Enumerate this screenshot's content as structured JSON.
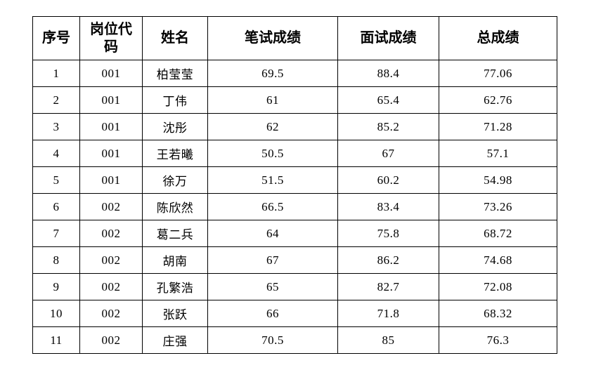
{
  "table": {
    "headers": [
      {
        "key": "seq",
        "label": "序号"
      },
      {
        "key": "code",
        "label": "岗位代码"
      },
      {
        "key": "name",
        "label": "姓名"
      },
      {
        "key": "written",
        "label": "笔试成绩"
      },
      {
        "key": "interview",
        "label": "面试成绩"
      },
      {
        "key": "total",
        "label": "总成绩"
      }
    ],
    "rows": [
      {
        "seq": "1",
        "code": "001",
        "name": "柏莹莹",
        "written": "69.5",
        "interview": "88.4",
        "total": "77.06"
      },
      {
        "seq": "2",
        "code": "001",
        "name": "丁伟",
        "written": "61",
        "interview": "65.4",
        "total": "62.76"
      },
      {
        "seq": "3",
        "code": "001",
        "name": "沈彤",
        "written": "62",
        "interview": "85.2",
        "total": "71.28"
      },
      {
        "seq": "4",
        "code": "001",
        "name": "王若曦",
        "written": "50.5",
        "interview": "67",
        "total": "57.1"
      },
      {
        "seq": "5",
        "code": "001",
        "name": "徐万",
        "written": "51.5",
        "interview": "60.2",
        "total": "54.98"
      },
      {
        "seq": "6",
        "code": "002",
        "name": "陈欣然",
        "written": "66.5",
        "interview": "83.4",
        "total": "73.26"
      },
      {
        "seq": "7",
        "code": "002",
        "name": "葛二兵",
        "written": "64",
        "interview": "75.8",
        "total": "68.72"
      },
      {
        "seq": "8",
        "code": "002",
        "name": "胡南",
        "written": "67",
        "interview": "86.2",
        "total": "74.68"
      },
      {
        "seq": "9",
        "code": "002",
        "name": "孔繁浩",
        "written": "65",
        "interview": "82.7",
        "total": "72.08"
      },
      {
        "seq": "10",
        "code": "002",
        "name": "张跃",
        "written": "66",
        "interview": "71.8",
        "total": "68.32"
      },
      {
        "seq": "11",
        "code": "002",
        "name": "庄强",
        "written": "70.5",
        "interview": "85",
        "total": "76.3"
      }
    ]
  },
  "colors": {
    "border": "#000000",
    "text": "#000000",
    "background": "#ffffff"
  }
}
